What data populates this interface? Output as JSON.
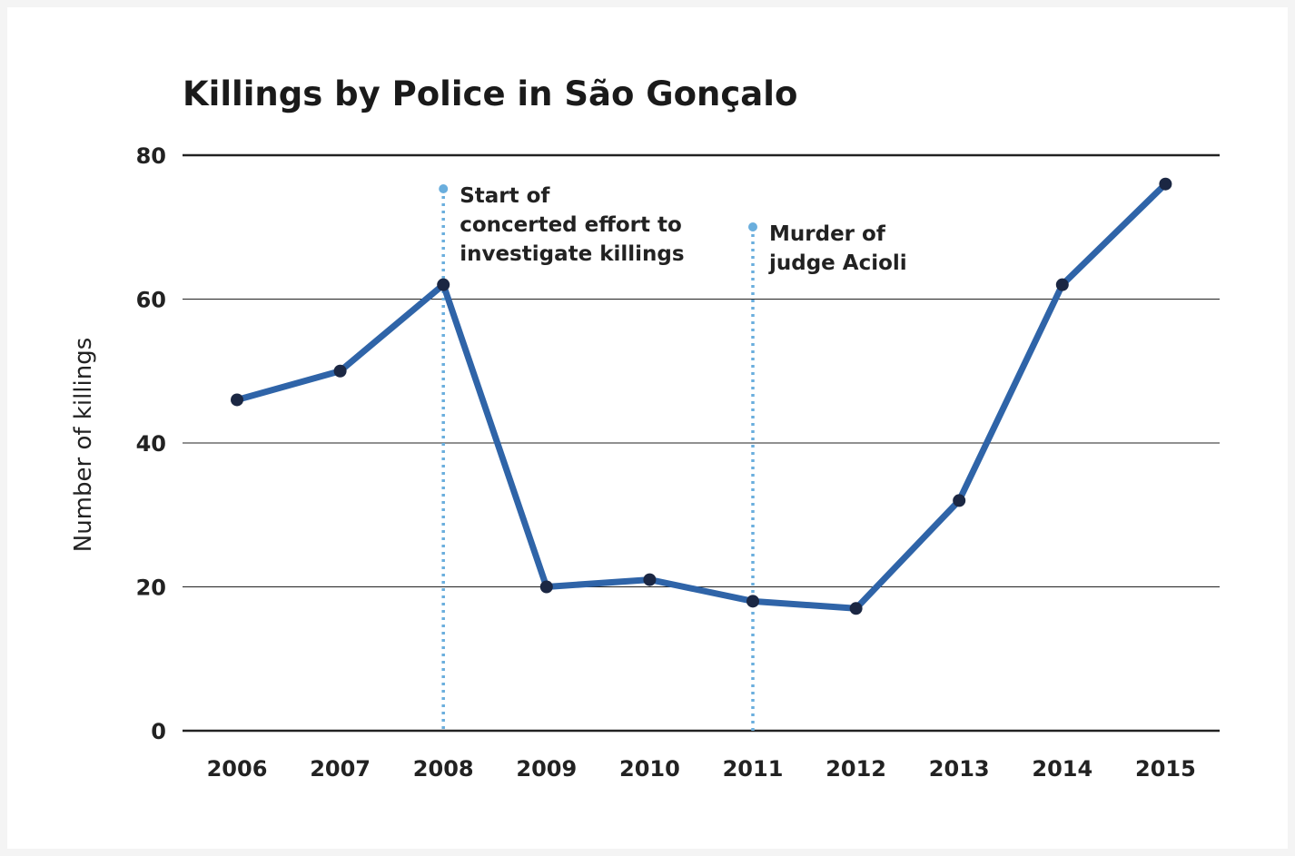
{
  "chart_data": {
    "type": "line",
    "title": "Killings by Police in São Gonçalo",
    "xlabel": "",
    "ylabel": "Number of killings",
    "categories": [
      "2006",
      "2007",
      "2008",
      "2009",
      "2010",
      "2011",
      "2012",
      "2013",
      "2014",
      "2015"
    ],
    "series": [
      {
        "values": [
          46,
          50,
          62,
          20,
          21,
          18,
          17,
          32,
          62,
          76
        ]
      }
    ],
    "ylim": [
      0,
      80
    ],
    "yticks": [
      0,
      20,
      40,
      60,
      80
    ],
    "grid": true,
    "line_color": "#2f64a8",
    "marker_color": "#1b2743",
    "annotations": [
      {
        "x": "2008",
        "lines": [
          "Start of",
          "concerted effort to",
          "investigate killings"
        ],
        "color": "#6aaedd"
      },
      {
        "x": "2011",
        "lines": [
          "Murder of",
          "judge Acioli"
        ],
        "color": "#6aaedd"
      }
    ]
  }
}
